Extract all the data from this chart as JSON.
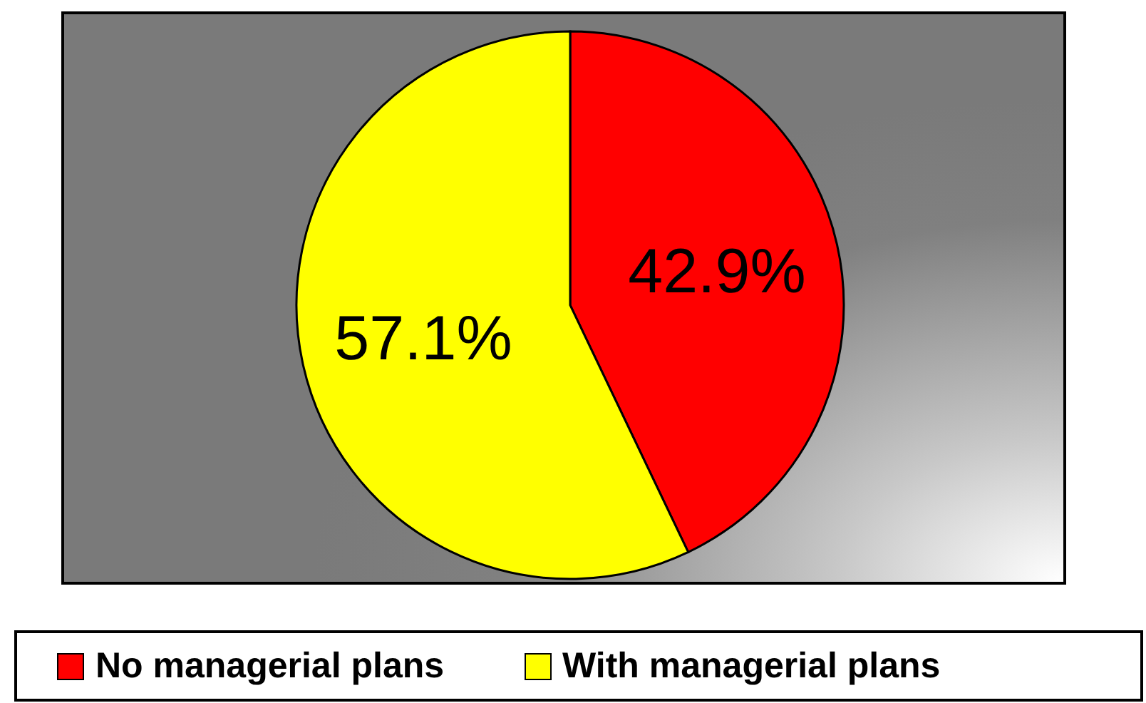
{
  "chart_data": {
    "type": "pie",
    "categories": [
      "No managerial plans",
      "With managerial plans"
    ],
    "values": [
      42.9,
      57.1
    ],
    "colors": [
      "#ff0000",
      "#ffff00"
    ],
    "value_labels": [
      "42.9%",
      "57.1%"
    ],
    "legend": "bottom"
  }
}
